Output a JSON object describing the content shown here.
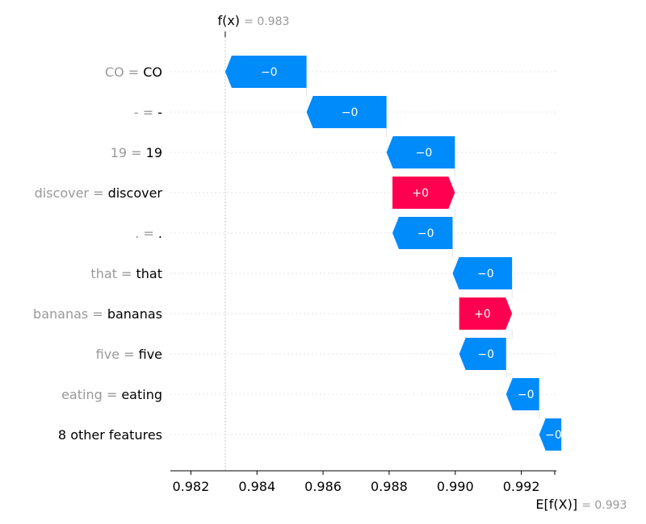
{
  "chart_data": {
    "type": "waterfall",
    "fx": {
      "label": "f(x)",
      "value": "0.983",
      "x": 0.98304
    },
    "efx": {
      "label": "E[f(X)]",
      "value": "0.993",
      "x": 0.99301
    },
    "xlim": [
      0.98138,
      0.99306
    ],
    "xticks": [
      {
        "value": 0.982,
        "label": "0.982"
      },
      {
        "value": 0.984,
        "label": "0.984"
      },
      {
        "value": 0.986,
        "label": "0.986"
      },
      {
        "value": 0.988,
        "label": "0.988"
      },
      {
        "value": 0.99,
        "label": "0.990"
      },
      {
        "value": 0.992,
        "label": "0.992"
      }
    ],
    "rows": [
      {
        "feature": "CO = ",
        "value": "CO",
        "text": "−0",
        "sign": "neg",
        "start": 0.98304,
        "end": 0.9855
      },
      {
        "feature": "- = ",
        "value": "-",
        "text": "−0",
        "sign": "neg",
        "start": 0.9855,
        "end": 0.98792
      },
      {
        "feature": "19 = ",
        "value": "19",
        "text": "−0",
        "sign": "neg",
        "start": 0.98792,
        "end": 0.98999
      },
      {
        "feature": "discover  = ",
        "value": "discover",
        "text": "+0",
        "sign": "pos",
        "start": 0.9881,
        "end": 0.98999
      },
      {
        "feature": ". = ",
        "value": ".",
        "text": "−0",
        "sign": "neg",
        "start": 0.9881,
        "end": 0.98992
      },
      {
        "feature": "that  = ",
        "value": "that",
        "text": "−0",
        "sign": "neg",
        "start": 0.98992,
        "end": 0.99172
      },
      {
        "feature": "bananas  = ",
        "value": "bananas",
        "text": "+0",
        "sign": "pos",
        "start": 0.99012,
        "end": 0.99172
      },
      {
        "feature": "five  = ",
        "value": "five",
        "text": "−0",
        "sign": "neg",
        "start": 0.99012,
        "end": 0.99154
      },
      {
        "feature": "eating  = ",
        "value": "eating",
        "text": "−0",
        "sign": "neg",
        "start": 0.99154,
        "end": 0.99254
      },
      {
        "feature": "",
        "value": "8 other features",
        "text": "−0",
        "sign": "neg",
        "start": 0.99254,
        "end": 0.99321
      }
    ],
    "colors": {
      "negative": "#008bfb",
      "positive": "#ff0051"
    }
  }
}
